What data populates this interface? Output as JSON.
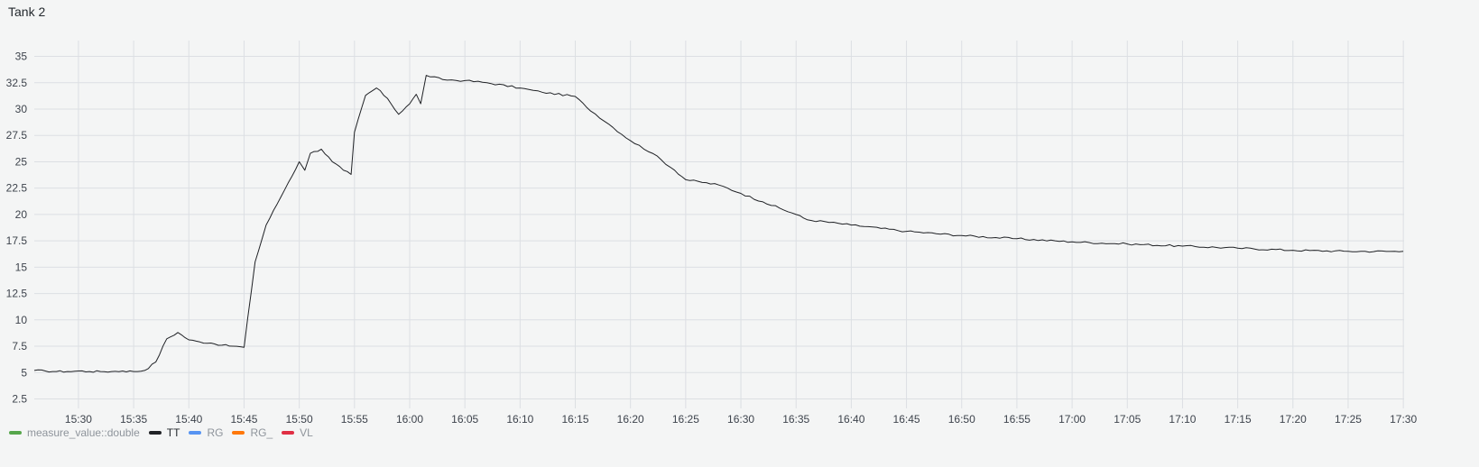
{
  "panel": {
    "title": "Tank 2"
  },
  "colors": {
    "measure_value::double": "#56a64b",
    "TT": "#202226",
    "RG": "#5794f2",
    "RG_": "#ff780a",
    "VL": "#e02f44"
  },
  "legend": [
    {
      "label": "measure_value::double",
      "color": "#56a64b",
      "active": false
    },
    {
      "label": "TT",
      "color": "#202226",
      "active": true
    },
    {
      "label": "RG",
      "color": "#5794f2",
      "active": false
    },
    {
      "label": "RG_",
      "color": "#ff780a",
      "active": false
    },
    {
      "label": "VL",
      "color": "#e02f44",
      "active": false
    }
  ],
  "chart_data": {
    "type": "line",
    "title": "Tank 2",
    "xlabel": "",
    "ylabel": "",
    "x_range": [
      "15:26",
      "17:30"
    ],
    "ylim": [
      1.6,
      36.5
    ],
    "grid": true,
    "legend_position": "bottom-left",
    "x_ticks": [
      "15:30",
      "15:35",
      "15:40",
      "15:45",
      "15:50",
      "15:55",
      "16:00",
      "16:05",
      "16:10",
      "16:15",
      "16:20",
      "16:25",
      "16:30",
      "16:35",
      "16:40",
      "16:45",
      "16:50",
      "16:55",
      "17:00",
      "17:05",
      "17:10",
      "17:15",
      "17:20",
      "17:25",
      "17:30"
    ],
    "y_ticks": [
      2.5,
      5,
      7.5,
      10,
      12.5,
      15,
      17.5,
      20,
      22.5,
      25,
      27.5,
      30,
      32.5,
      35
    ],
    "series": [
      {
        "name": "TT",
        "color": "#202226",
        "points": [
          [
            "15:26",
            5.2
          ],
          [
            "15:27",
            5.15
          ],
          [
            "15:28",
            5.1
          ],
          [
            "15:29",
            5.1
          ],
          [
            "15:30",
            5.15
          ],
          [
            "15:31",
            5.1
          ],
          [
            "15:32",
            5.1
          ],
          [
            "15:33",
            5.1
          ],
          [
            "15:34",
            5.15
          ],
          [
            "15:35",
            5.1
          ],
          [
            "15:36",
            5.2
          ],
          [
            "15:37",
            6.0
          ],
          [
            "15:38",
            8.2
          ],
          [
            "15:39",
            8.8
          ],
          [
            "15:40",
            8.1
          ],
          [
            "15:41",
            7.9
          ],
          [
            "15:42",
            7.8
          ],
          [
            "15:43",
            7.6
          ],
          [
            "15:44",
            7.5
          ],
          [
            "15:45",
            7.4
          ],
          [
            "15:46",
            15.5
          ],
          [
            "15:47",
            19.0
          ],
          [
            "15:48",
            21.0
          ],
          [
            "15:49",
            23.0
          ],
          [
            "15:50",
            25.0
          ],
          [
            "15:50.5",
            24.2
          ],
          [
            "15:51",
            25.8
          ],
          [
            "15:52",
            26.2
          ],
          [
            "15:53",
            25.0
          ],
          [
            "15:54",
            24.2
          ],
          [
            "15:54.7",
            23.8
          ],
          [
            "15:55",
            27.8
          ],
          [
            "15:56",
            31.3
          ],
          [
            "15:57",
            32.0
          ],
          [
            "15:58",
            31.0
          ],
          [
            "15:59",
            29.5
          ],
          [
            "16:00",
            30.5
          ],
          [
            "16:00.6",
            31.4
          ],
          [
            "16:01",
            30.5
          ],
          [
            "16:01.5",
            33.2
          ],
          [
            "16:03",
            32.8
          ],
          [
            "16:05",
            32.7
          ],
          [
            "16:07",
            32.5
          ],
          [
            "16:10",
            32.0
          ],
          [
            "16:12",
            31.6
          ],
          [
            "16:15",
            31.2
          ],
          [
            "16:16",
            30.2
          ],
          [
            "16:18",
            28.6
          ],
          [
            "16:20",
            27.0
          ],
          [
            "16:22",
            25.8
          ],
          [
            "16:24",
            24.2
          ],
          [
            "16:25",
            23.3
          ],
          [
            "16:28",
            22.8
          ],
          [
            "16:30",
            22.0
          ],
          [
            "16:32",
            21.2
          ],
          [
            "16:35",
            20.0
          ],
          [
            "16:36",
            19.5
          ],
          [
            "16:40",
            19.0
          ],
          [
            "16:45",
            18.4
          ],
          [
            "16:50",
            18.0
          ],
          [
            "16:55",
            17.7
          ],
          [
            "17:00",
            17.4
          ],
          [
            "17:05",
            17.2
          ],
          [
            "17:10",
            17.0
          ],
          [
            "17:15",
            16.8
          ],
          [
            "17:20",
            16.6
          ],
          [
            "17:25",
            16.5
          ],
          [
            "17:30",
            16.5
          ]
        ]
      },
      {
        "name": "measure_value::double",
        "color": "#56a64b",
        "points": []
      },
      {
        "name": "RG",
        "color": "#5794f2",
        "points": []
      },
      {
        "name": "RG_",
        "color": "#ff780a",
        "points": []
      },
      {
        "name": "VL",
        "color": "#e02f44",
        "points": []
      }
    ]
  }
}
